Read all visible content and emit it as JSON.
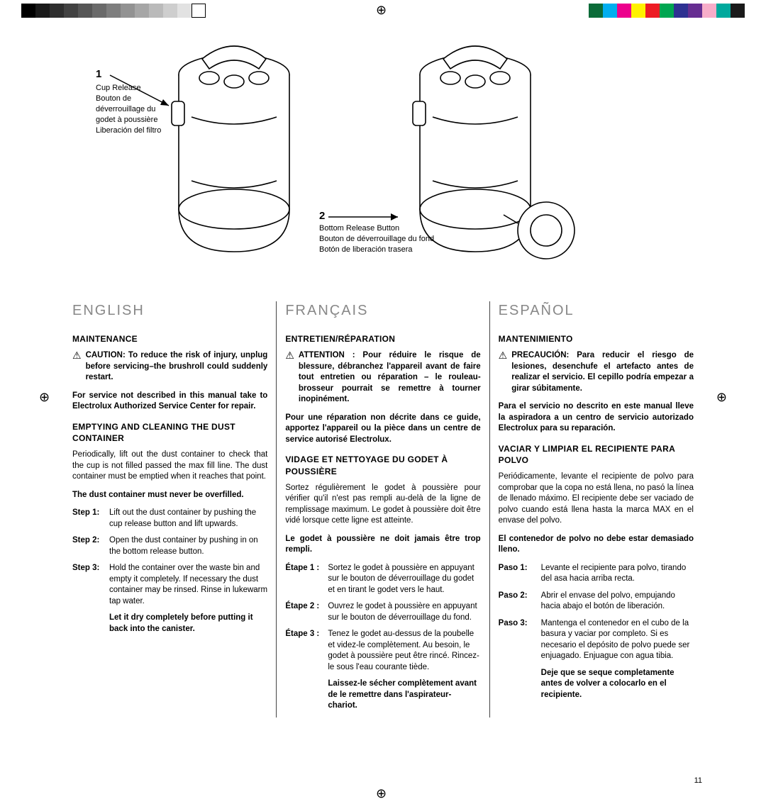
{
  "colorbar_left": {
    "swatches": [
      "#000000",
      "#1a1a1a",
      "#2e2e2e",
      "#424242",
      "#565656",
      "#6a6a6a",
      "#7e7e7e",
      "#929292",
      "#a6a6a6",
      "#bababa",
      "#cecece",
      "#e2e2e2",
      "#ffffff"
    ],
    "width": 20
  },
  "colorbar_right": {
    "swatches": [
      "#0b6b38",
      "#00aeef",
      "#ec008c",
      "#fff200",
      "#ed1c24",
      "#00a651",
      "#2e3192",
      "#662d91",
      "#f7adc9",
      "#00a99d",
      "#1a1a1a"
    ],
    "width": 20
  },
  "figure": {
    "callout1": {
      "num": "1",
      "en": "Cup Release",
      "fr": "Bouton de déverrouillage du godet à poussière",
      "es": "Liberación del filtro"
    },
    "callout2": {
      "num": "2",
      "en": "Bottom Release Button",
      "fr": "Bouton de déverrouillage du fond",
      "es": "Botón de liberación trasera"
    }
  },
  "english": {
    "lang": "ENGLISH",
    "title1": "MAINTENANCE",
    "caution": "CAUTION: To reduce the risk of injury, unplug before servicing–the brushroll could suddenly restart.",
    "service": "For service not described in this manual take to Electrolux Authorized Service Center for repair.",
    "title2": "EMPTYING AND CLEANING THE DUST CONTAINER",
    "intro": "Periodically, lift out the dust container to check that the cup is not filled passed the max fill line. The dust container must be emptied when it reaches that point.",
    "warn": "The dust container must never be overfilled.",
    "step1_lbl": "Step 1:",
    "step1": "Lift out the dust container by pushing the cup release button and lift upwards.",
    "step2_lbl": "Step 2:",
    "step2": "Open the dust container by pushing in on the bottom release button.",
    "step3_lbl": "Step 3:",
    "step3": "Hold the container over the waste bin and empty it completely. If necessary the dust container may be rinsed. Rinse in lukewarm tap water.",
    "dry": "Let it dry completely before putting it back into the canister."
  },
  "francais": {
    "lang": "FRANÇAIS",
    "title1": "ENTRETIEN/RÉPARATION",
    "caution": "ATTENTION : Pour réduire le risque de blessure, débranchez l'appareil avant de faire tout entretien ou réparation – le rouleau-brosseur pourrait se remettre à tourner inopinément.",
    "service": "Pour une réparation non décrite dans ce guide, apportez l'appareil ou la pièce dans un centre de service autorisé Electrolux.",
    "title2": "VIDAGE ET NETTOYAGE DU GODET À POUSSIÈRE",
    "intro": "Sortez régulièrement le godet à poussière pour vérifier qu'il n'est pas rempli au-delà de la ligne de remplissage maximum. Le godet à poussière doit être vidé lorsque cette ligne est atteinte.",
    "warn": "Le godet à poussière ne doit jamais être trop rempli.",
    "step1_lbl": "Étape 1 :",
    "step1": "Sortez le godet à poussière en appuyant sur le bouton de déverrouillage du godet et en tirant le godet vers le haut.",
    "step2_lbl": "Étape 2 :",
    "step2": "Ouvrez le godet à poussière en appuyant sur le bouton de déverrouillage du fond.",
    "step3_lbl": "Étape 3 :",
    "step3": "Tenez le godet au-dessus de la poubelle et videz-le complètement. Au besoin, le godet à poussière peut être rincé. Rincez-le sous l'eau courante tiède.",
    "dry": "Laissez-le sécher complètement avant de le remettre dans l'aspirateur-chariot."
  },
  "espanol": {
    "lang": "ESPAÑOL",
    "title1": "MANTENIMIENTO",
    "caution": "PRECAUCIÓN: Para reducir el riesgo de lesiones, desenchufe el artefacto antes de realizar el servicio. El cepillo podría empezar a girar súbitamente.",
    "service": "Para el servicio no descrito en este manual lleve la aspiradora a un centro de servicio autorizado Electrolux para su reparación.",
    "title2": "VACIAR Y LIMPIAR EL RECIPIENTE PARA POLVO",
    "intro": "Periódicamente, levante el recipiente de polvo para comprobar que la copa no está llena, no pasó la línea de llenado máximo. El recipiente debe ser vaciado de polvo cuando está llena hasta la marca MAX en el envase del polvo.",
    "warn": "El contenedor de polvo no debe estar demasiado lleno.",
    "step1_lbl": "Paso 1:",
    "step1": "Levante el recipiente para polvo, tirando del asa hacia arriba recta.",
    "step2_lbl": "Paso 2:",
    "step2": "Abrir el envase del polvo, empujando hacia abajo el botón de liberación.",
    "step3_lbl": "Paso 3:",
    "step3": "Mantenga el contenedor en el cubo de la basura y vaciar por completo. Si es necesario el depósito de polvo puede ser enjuagado. Enjuague con agua tibia.",
    "dry": "Deje que se seque completamente antes de volver a colocarlo en el recipiente."
  },
  "pagenum": "11"
}
